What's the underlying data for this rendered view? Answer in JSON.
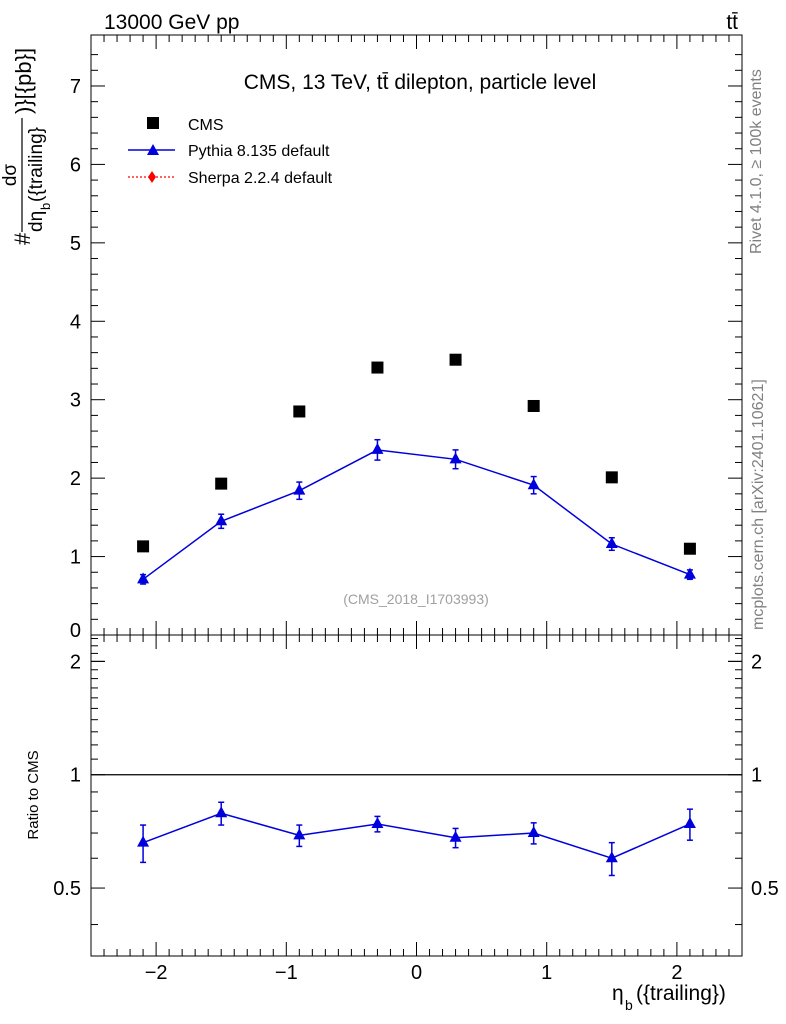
{
  "header": {
    "energy": "13000 GeV pp",
    "process": "tt̄"
  },
  "side_labels": {
    "rivet": "Rivet 4.1.0, ≥ 100k events",
    "mcplots": "mcplots.cern.ch [arXiv:2401.10621]"
  },
  "chart_data": [
    {
      "type": "scatter",
      "panel": "main",
      "title": "CMS, 13 TeV, tt̄ dilepton, particle level",
      "watermark": "(CMS_2018_I1703993)",
      "xlabel": "η_b({trailing})",
      "ylabel": "#dσ/dη_b({trailing})}[{pb}]",
      "ylabel_parts": {
        "num": "dσ",
        "den_a": "dη",
        "den_sub": "b",
        "den_b": "({trailing}",
        "hash": "#",
        "unit": ")}[{pb}]"
      },
      "xlim": [
        -2.5,
        2.5
      ],
      "ylim": [
        0,
        7.65
      ],
      "yticks": [
        "0",
        "1",
        "2",
        "3",
        "4",
        "5",
        "6",
        "7"
      ],
      "legend_position": "top-left",
      "series": [
        {
          "name": "CMS",
          "color": "#000000",
          "marker": "square",
          "x": [
            -2.1,
            -1.5,
            -0.9,
            -0.3,
            0.3,
            0.9,
            1.5,
            2.1
          ],
          "y": [
            1.13,
            1.93,
            2.85,
            3.41,
            3.51,
            2.92,
            2.01,
            1.1
          ],
          "err": [
            0.0,
            0.0,
            0.0,
            0.0,
            0.0,
            0.0,
            0.0,
            0.0
          ]
        },
        {
          "name": "Pythia 8.135 default",
          "color": "#0000dd",
          "marker": "triangle",
          "x": [
            -2.1,
            -1.5,
            -0.9,
            -0.3,
            0.3,
            0.9,
            1.5,
            2.1
          ],
          "y": [
            0.71,
            1.45,
            1.84,
            2.36,
            2.24,
            1.91,
            1.16,
            0.77
          ],
          "err": [
            0.06,
            0.09,
            0.11,
            0.13,
            0.12,
            0.11,
            0.08,
            0.06
          ]
        },
        {
          "name": "Sherpa 2.2.4 default",
          "color": "#ff0000",
          "marker": "diamond",
          "x": [],
          "y": [],
          "err": []
        }
      ]
    },
    {
      "type": "line",
      "panel": "ratio",
      "ylabel": "Ratio to CMS",
      "xlim": [
        -2.5,
        2.5
      ],
      "ylim": [
        0.33,
        2.35
      ],
      "yticks": [
        "0.5",
        "1",
        "2"
      ],
      "xticks": [
        "−2",
        "−1",
        "0",
        "1",
        "2"
      ],
      "reference_line": 1,
      "series": [
        {
          "name": "Pythia 8.135 default",
          "color": "#0000dd",
          "x": [
            -2.1,
            -1.5,
            -0.9,
            -0.3,
            0.3,
            0.9,
            1.5,
            2.1
          ],
          "y": [
            0.66,
            0.79,
            0.69,
            0.74,
            0.68,
            0.7,
            0.6,
            0.74
          ],
          "err": [
            0.075,
            0.055,
            0.045,
            0.035,
            0.04,
            0.045,
            0.06,
            0.07
          ]
        }
      ]
    }
  ]
}
